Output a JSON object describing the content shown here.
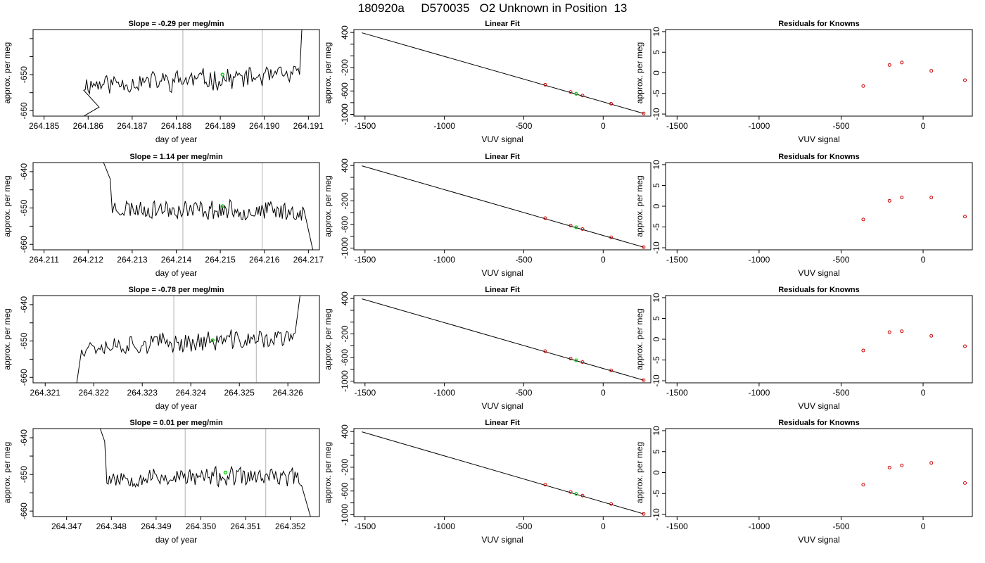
{
  "page": {
    "title": "180920a     D570035   O2 Unknown in Position  13"
  },
  "colors": {
    "trace": "#000000",
    "highlight": "#00cc00",
    "known_points": "#cc0000",
    "marker_lines": "#bebebe",
    "fit_line": "#000000"
  },
  "chart_data": [
    {
      "type": "line",
      "role": "time-trace",
      "row": 0,
      "title": "Slope =  -0.29  per meg/min",
      "xlabel": "day of year",
      "ylabel": "approx. per meg",
      "xlim": [
        264.18475,
        264.19125
      ],
      "ylim": [
        -661.5,
        -637.5
      ],
      "xticks": [
        264.185,
        264.186,
        264.187,
        264.188,
        264.189,
        264.19,
        264.191
      ],
      "xtick_labels": [
        "264.185",
        "264.186",
        "264.187",
        "264.188",
        "264.189",
        "264.190",
        "264.191"
      ],
      "yticks": [
        -660,
        -655,
        -650,
        -645,
        -640
      ],
      "ytick_labels": [
        "-660",
        "",
        "-650",
        "",
        ""
      ],
      "vlines": [
        264.18815,
        264.18995
      ],
      "trace": {
        "x_start": 264.1859,
        "x_end": 264.1908,
        "n": 150,
        "seed": 11,
        "mean": -651.5,
        "amp": 2.6,
        "drift": 1.2,
        "lead": [
          [
            264.1859,
            -661.5
          ],
          [
            264.18625,
            -659
          ]
        ],
        "tail": [
          [
            264.19085,
            -637.5
          ]
        ]
      },
      "highlight": {
        "x": 264.18905,
        "y": -650
      }
    },
    {
      "type": "scatter",
      "role": "linear-fit",
      "row": 0,
      "title": "Linear Fit",
      "xlabel": "VUV signal",
      "ylabel": "approx. per meg",
      "xlim": [
        -1570,
        300
      ],
      "ylim": [
        -1030,
        450
      ],
      "xticks": [
        -1500,
        -1000,
        -500,
        0
      ],
      "xtick_labels": [
        "-1500",
        "-1000",
        "-500",
        "0"
      ],
      "yticks": [
        -1000,
        -800,
        -600,
        -400,
        -200,
        0,
        200,
        400
      ],
      "ytick_labels": [
        "-1000",
        "",
        "-600",
        "",
        "-200",
        "",
        "",
        "400"
      ],
      "fit_line": {
        "x": [
          -1520,
          255
        ],
        "y": [
          395,
          -985
        ]
      },
      "knowns": {
        "x": [
          -365,
          -205,
          -130,
          50,
          255
        ],
        "y": [
          -493,
          -618,
          -678,
          -818,
          -985
        ]
      },
      "unknown": {
        "x": [
          -170
        ],
        "y": [
          -648
        ]
      }
    },
    {
      "type": "scatter",
      "role": "residuals",
      "row": 0,
      "title": "Residuals for Knowns",
      "xlabel": "VUV signal",
      "ylabel": "approx. per meg",
      "xlim": [
        -1570,
        300
      ],
      "ylim": [
        -10.5,
        10.5
      ],
      "xticks": [
        -1500,
        -1000,
        -500,
        0
      ],
      "xtick_labels": [
        "-1500",
        "-1000",
        "-500",
        "0"
      ],
      "yticks": [
        -10,
        -5,
        0,
        5,
        10
      ],
      "ytick_labels": [
        "-10",
        "-5",
        "0",
        "5",
        "10"
      ],
      "points": {
        "x": [
          -365,
          -205,
          -130,
          50,
          255
        ],
        "y": [
          -3.2,
          1.9,
          2.5,
          0.5,
          -1.8
        ]
      }
    },
    {
      "type": "line",
      "role": "time-trace",
      "row": 1,
      "title": "Slope =  1.14  per meg/min",
      "xlabel": "day of year",
      "ylabel": "approx. per meg",
      "xlim": [
        264.21075,
        264.21725
      ],
      "ylim": [
        -661.5,
        -637.5
      ],
      "xticks": [
        264.211,
        264.212,
        264.213,
        264.214,
        264.215,
        264.216,
        264.217
      ],
      "xtick_labels": [
        "264.211",
        "264.212",
        "264.213",
        "264.214",
        "264.215",
        "264.216",
        "264.217"
      ],
      "yticks": [
        -660,
        -655,
        -650,
        -645,
        -640
      ],
      "ytick_labels": [
        "-660",
        "",
        "-650",
        "",
        "-640"
      ],
      "vlines": [
        264.21415,
        264.21595
      ],
      "trace": {
        "x_start": 264.21255,
        "x_end": 264.2169,
        "n": 150,
        "seed": 23,
        "mean": -650.5,
        "amp": 2.4,
        "drift": -0.5,
        "lead": [
          [
            264.21235,
            -637.5
          ],
          [
            264.2125,
            -642
          ]
        ],
        "tail": [
          [
            264.2171,
            -661.5
          ]
        ]
      },
      "highlight": {
        "x": 264.21505,
        "y": -649.5
      }
    },
    {
      "type": "scatter",
      "role": "linear-fit",
      "row": 1,
      "title": "Linear Fit",
      "xlabel": "VUV signal",
      "ylabel": "approx. per meg",
      "xlim": [
        -1570,
        300
      ],
      "ylim": [
        -1030,
        450
      ],
      "xticks": [
        -1500,
        -1000,
        -500,
        0
      ],
      "xtick_labels": [
        "-1500",
        "-1000",
        "-500",
        "0"
      ],
      "yticks": [
        -1000,
        -800,
        -600,
        -400,
        -200,
        0,
        200,
        400
      ],
      "ytick_labels": [
        "-1000",
        "",
        "-600",
        "",
        "-200",
        "",
        "",
        "400"
      ],
      "fit_line": {
        "x": [
          -1520,
          255
        ],
        "y": [
          395,
          -985
        ]
      },
      "knowns": {
        "x": [
          -365,
          -205,
          -130,
          50,
          255
        ],
        "y": [
          -493,
          -618,
          -678,
          -818,
          -985
        ]
      },
      "unknown": {
        "x": [
          -170
        ],
        "y": [
          -648
        ]
      }
    },
    {
      "type": "scatter",
      "role": "residuals",
      "row": 1,
      "title": "Residuals for Knowns",
      "xlabel": "VUV signal",
      "ylabel": "approx. per meg",
      "xlim": [
        -1570,
        300
      ],
      "ylim": [
        -10.5,
        10.5
      ],
      "xticks": [
        -1500,
        -1000,
        -500,
        0
      ],
      "xtick_labels": [
        "-1500",
        "-1000",
        "-500",
        "0"
      ],
      "yticks": [
        -10,
        -5,
        0,
        5,
        10
      ],
      "ytick_labels": [
        "-10",
        "-5",
        "0",
        "5",
        "10"
      ],
      "points": {
        "x": [
          -365,
          -205,
          -130,
          50,
          255
        ],
        "y": [
          -3.2,
          1.3,
          2.1,
          2.1,
          -2.5
        ]
      }
    },
    {
      "type": "line",
      "role": "time-trace",
      "row": 2,
      "title": "Slope =  -0.78  per meg/min",
      "xlabel": "day of year",
      "ylabel": "approx. per meg",
      "xlim": [
        264.32075,
        264.32665
      ],
      "ylim": [
        -661.5,
        -637.5
      ],
      "xticks": [
        264.321,
        264.322,
        264.323,
        264.324,
        264.325,
        264.326
      ],
      "xtick_labels": [
        "264.321",
        "264.322",
        "264.323",
        "264.324",
        "264.325",
        "264.326"
      ],
      "yticks": [
        -660,
        -655,
        -650,
        -645,
        -640
      ],
      "ytick_labels": [
        "-660",
        "",
        "-650",
        "",
        "-640"
      ],
      "vlines": [
        264.32365,
        264.32535
      ],
      "trace": {
        "x_start": 264.32175,
        "x_end": 264.32615,
        "n": 150,
        "seed": 37,
        "mean": -650.3,
        "amp": 2.5,
        "drift": 1.0,
        "lead": [
          [
            264.32165,
            -661.5
          ],
          [
            264.3217,
            -657
          ]
        ],
        "tail": [
          [
            264.32625,
            -637.5
          ]
        ]
      },
      "highlight": {
        "x": 264.32445,
        "y": -649.8
      }
    },
    {
      "type": "scatter",
      "role": "linear-fit",
      "row": 2,
      "title": "Linear Fit",
      "xlabel": "VUV signal",
      "ylabel": "approx. per meg",
      "xlim": [
        -1570,
        300
      ],
      "ylim": [
        -1030,
        450
      ],
      "xticks": [
        -1500,
        -1000,
        -500,
        0
      ],
      "xtick_labels": [
        "-1500",
        "-1000",
        "-500",
        "0"
      ],
      "yticks": [
        -1000,
        -800,
        -600,
        -400,
        -200,
        0,
        200,
        400
      ],
      "ytick_labels": [
        "-1000",
        "",
        "-600",
        "",
        "-200",
        "",
        "",
        "400"
      ],
      "fit_line": {
        "x": [
          -1520,
          255
        ],
        "y": [
          395,
          -985
        ]
      },
      "knowns": {
        "x": [
          -365,
          -205,
          -130,
          50,
          255
        ],
        "y": [
          -493,
          -618,
          -678,
          -818,
          -985
        ]
      },
      "unknown": {
        "x": [
          -170
        ],
        "y": [
          -648
        ]
      }
    },
    {
      "type": "scatter",
      "role": "residuals",
      "row": 2,
      "title": "Residuals for Knowns",
      "xlabel": "VUV signal",
      "ylabel": "approx. per meg",
      "xlim": [
        -1570,
        300
      ],
      "ylim": [
        -10.5,
        10.5
      ],
      "xticks": [
        -1500,
        -1000,
        -500,
        0
      ],
      "xtick_labels": [
        "-1500",
        "-1000",
        "-500",
        "0"
      ],
      "yticks": [
        -10,
        -5,
        0,
        5,
        10
      ],
      "ytick_labels": [
        "-10",
        "-5",
        "0",
        "5",
        "10"
      ],
      "points": {
        "x": [
          -365,
          -205,
          -130,
          50,
          255
        ],
        "y": [
          -2.7,
          1.7,
          1.9,
          0.8,
          -1.7
        ]
      }
    },
    {
      "type": "line",
      "role": "time-trace",
      "row": 3,
      "title": "Slope =  0.01  per meg/min",
      "xlabel": "day of year",
      "ylabel": "approx. per meg",
      "xlim": [
        264.34625,
        264.35265
      ],
      "ylim": [
        -661.5,
        -637.5
      ],
      "xticks": [
        264.347,
        264.348,
        264.349,
        264.35,
        264.351,
        264.352
      ],
      "xtick_labels": [
        "264.347",
        "264.348",
        "264.349",
        "264.350",
        "264.351",
        "264.352"
      ],
      "yticks": [
        -660,
        -655,
        -650,
        -645,
        -640
      ],
      "ytick_labels": [
        "-660",
        "",
        "-650",
        "",
        "-640"
      ],
      "vlines": [
        264.34965,
        264.35145
      ],
      "trace": {
        "x_start": 264.3479,
        "x_end": 264.35225,
        "n": 150,
        "seed": 53,
        "mean": -650.8,
        "amp": 2.3,
        "drift": 0.0,
        "lead": [
          [
            264.34775,
            -637.5
          ],
          [
            264.34785,
            -641
          ]
        ],
        "tail": [
          [
            264.35245,
            -661.5
          ]
        ]
      },
      "highlight": {
        "x": 264.35055,
        "y": -649.5
      }
    },
    {
      "type": "scatter",
      "role": "linear-fit",
      "row": 3,
      "title": "Linear Fit",
      "xlabel": "VUV signal",
      "ylabel": "approx. per meg",
      "xlim": [
        -1570,
        300
      ],
      "ylim": [
        -1030,
        450
      ],
      "xticks": [
        -1500,
        -1000,
        -500,
        0
      ],
      "xtick_labels": [
        "-1500",
        "-1000",
        "-500",
        "0"
      ],
      "yticks": [
        -1000,
        -800,
        -600,
        -400,
        -200,
        0,
        200,
        400
      ],
      "ytick_labels": [
        "-1000",
        "",
        "-600",
        "",
        "-200",
        "",
        "",
        "400"
      ],
      "fit_line": {
        "x": [
          -1520,
          255
        ],
        "y": [
          395,
          -985
        ]
      },
      "knowns": {
        "x": [
          -365,
          -205,
          -130,
          50,
          255
        ],
        "y": [
          -493,
          -618,
          -678,
          -818,
          -985
        ]
      },
      "unknown": {
        "x": [
          -170
        ],
        "y": [
          -648
        ]
      }
    },
    {
      "type": "scatter",
      "role": "residuals",
      "row": 3,
      "title": "Residuals for Knowns",
      "xlabel": "VUV signal",
      "ylabel": "approx. per meg",
      "xlim": [
        -1570,
        300
      ],
      "ylim": [
        -10.5,
        10.5
      ],
      "xticks": [
        -1500,
        -1000,
        -500,
        0
      ],
      "xtick_labels": [
        "-1500",
        "-1000",
        "-500",
        "0"
      ],
      "yticks": [
        -10,
        -5,
        0,
        5,
        10
      ],
      "ytick_labels": [
        "-10",
        "-5",
        "0",
        "5",
        "10"
      ],
      "points": {
        "x": [
          -365,
          -205,
          -130,
          50,
          255
        ],
        "y": [
          -2.9,
          1.2,
          1.7,
          2.3,
          -2.5
        ]
      }
    }
  ]
}
